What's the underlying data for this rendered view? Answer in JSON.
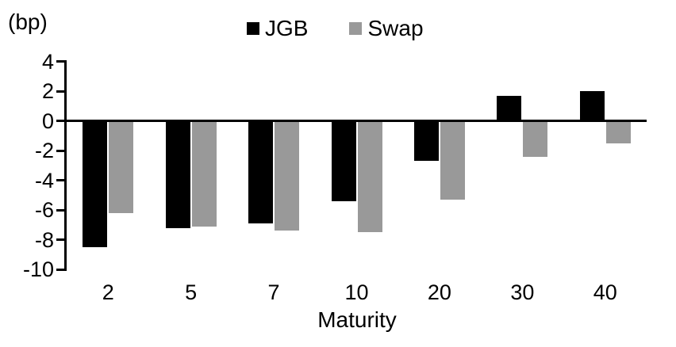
{
  "chart_data": {
    "type": "bar",
    "title": "",
    "unit_label": "(bp)",
    "xlabel": "Maturity",
    "ylabel": "",
    "categories": [
      "2",
      "5",
      "7",
      "10",
      "20",
      "30",
      "40"
    ],
    "series": [
      {
        "name": "JGB",
        "color": "#000000",
        "values": [
          -8.5,
          -7.2,
          -6.9,
          -5.4,
          -2.7,
          1.7,
          2.0
        ]
      },
      {
        "name": "Swap",
        "color": "#999999",
        "values": [
          -6.2,
          -7.1,
          -7.4,
          -7.5,
          -5.3,
          -2.4,
          -1.5
        ]
      }
    ],
    "yticks": [
      4,
      2,
      0,
      -2,
      -4,
      -6,
      -8,
      -10
    ],
    "ylim": [
      -10,
      4
    ],
    "grid": "off",
    "legend_position": "top-center",
    "background_color": "#ffffff"
  }
}
